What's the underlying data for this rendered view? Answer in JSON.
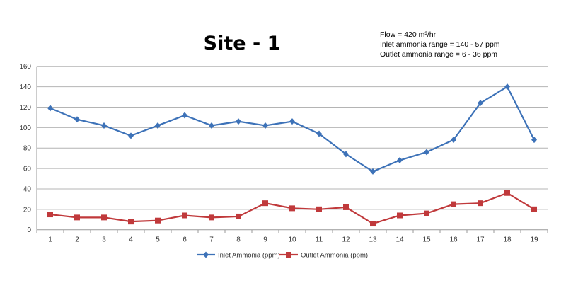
{
  "chart_data": {
    "type": "line",
    "title": "Site - 1",
    "annotations": [
      "Flow = 420  m³/hr",
      "Inlet ammonia range = 140 - 57 ppm",
      "Outlet ammonia range =  6 - 36 ppm"
    ],
    "categories": [
      "1",
      "2",
      "3",
      "4",
      "5",
      "6",
      "7",
      "8",
      "9",
      "10",
      "11",
      "12",
      "13",
      "14",
      "15",
      "16",
      "17",
      "18",
      "19"
    ],
    "series": [
      {
        "name": "Inlet Ammonia (ppm)",
        "color": "#3d72b8",
        "marker": "diamond",
        "values": [
          119,
          108,
          102,
          92,
          102,
          112,
          102,
          106,
          102,
          106,
          94,
          74,
          57,
          68,
          76,
          88,
          124,
          140,
          88
        ]
      },
      {
        "name": "Outlet Ammonia (ppm)",
        "color": "#c0393b",
        "marker": "square",
        "values": [
          15,
          12,
          12,
          8,
          9,
          14,
          12,
          13,
          26,
          21,
          20,
          22,
          6,
          14,
          16,
          25,
          26,
          36,
          20
        ]
      }
    ],
    "ylim": [
      0,
      160
    ],
    "yticks": [
      0,
      20,
      40,
      60,
      80,
      100,
      120,
      140,
      160
    ],
    "grid": true,
    "legend": "bottom"
  }
}
